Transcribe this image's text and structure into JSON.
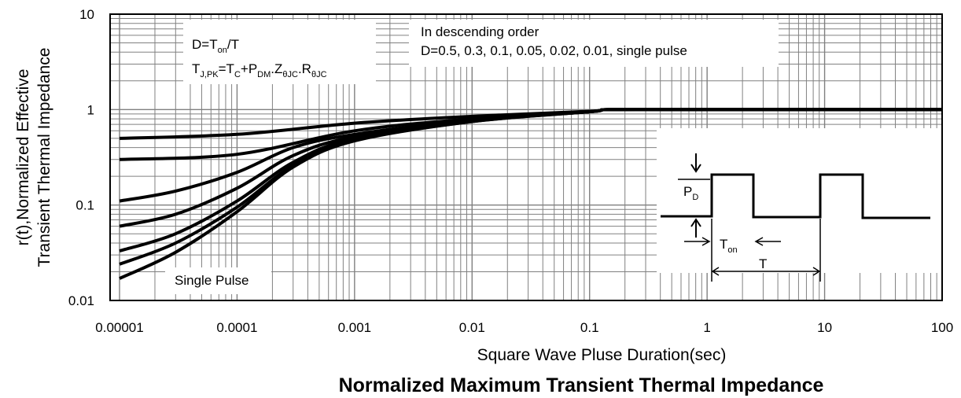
{
  "chart_data": {
    "type": "line",
    "title": "Normalized Maximum Transient Thermal Impedance",
    "xlabel": "Square Wave Pluse Duration(sec)",
    "ylabel_line1": "r(t),Normalized Effective",
    "ylabel_line2": "Transient Thermal Impedance",
    "x_scale": "log",
    "y_scale": "log",
    "xlim": [
      1e-05,
      100
    ],
    "ylim": [
      0.01,
      10
    ],
    "grid": true,
    "x_tick_labels": [
      "0.00001",
      "0.0001",
      "0.001",
      "0.01",
      "0.1",
      "1",
      "10",
      "100"
    ],
    "y_tick_labels": [
      "10",
      "1",
      "0.1",
      "0.01"
    ],
    "series": [
      {
        "x": [
          1e-05,
          0.0001,
          0.001,
          0.01,
          0.1,
          0.15,
          1,
          10,
          100
        ],
        "y": [
          0.5,
          0.55,
          0.72,
          0.85,
          0.96,
          1.0,
          1.0,
          1.0,
          1.0
        ]
      },
      {
        "x": [
          1e-05,
          0.0001,
          0.001,
          0.01,
          0.1,
          0.15,
          1,
          10,
          100
        ],
        "y": [
          0.3,
          0.34,
          0.6,
          0.8,
          0.95,
          1.0,
          1.0,
          1.0,
          1.0
        ]
      },
      {
        "x": [
          1e-05,
          3e-05,
          0.0001,
          0.0003,
          0.001,
          0.01,
          0.1,
          0.15,
          1,
          100
        ],
        "y": [
          0.11,
          0.14,
          0.22,
          0.4,
          0.55,
          0.78,
          0.95,
          1.0,
          1.0,
          1.0
        ]
      },
      {
        "x": [
          1e-05,
          3e-05,
          0.0001,
          0.0003,
          0.001,
          0.01,
          0.1,
          0.15,
          1,
          100
        ],
        "y": [
          0.06,
          0.08,
          0.15,
          0.33,
          0.52,
          0.77,
          0.95,
          1.0,
          1.0,
          1.0
        ]
      },
      {
        "x": [
          1e-05,
          3e-05,
          0.0001,
          0.0003,
          0.001,
          0.01,
          0.1,
          0.15,
          1,
          100
        ],
        "y": [
          0.033,
          0.05,
          0.11,
          0.28,
          0.5,
          0.76,
          0.95,
          1.0,
          1.0,
          1.0
        ]
      },
      {
        "x": [
          1e-05,
          3e-05,
          0.0001,
          0.0003,
          0.001,
          0.01,
          0.1,
          0.15,
          1,
          100
        ],
        "y": [
          0.024,
          0.04,
          0.095,
          0.26,
          0.48,
          0.75,
          0.95,
          1.0,
          1.0,
          1.0
        ]
      },
      {
        "x": [
          1e-05,
          3e-05,
          0.0001,
          0.0003,
          0.001,
          0.01,
          0.1,
          0.15,
          1,
          100
        ],
        "y": [
          0.017,
          0.032,
          0.085,
          0.25,
          0.47,
          0.75,
          0.95,
          1.0,
          1.0,
          1.0
        ]
      }
    ],
    "annotations": {
      "duty_formula_D": "D=",
      "duty_formula_Ton": "T",
      "duty_formula_on": "on",
      "duty_formula_tail": "/T",
      "tj_formula": {
        "T1": "T",
        "J_PK": "J,PK",
        "eq": "=T",
        "C": "C",
        "plusP": "+P",
        "DM": "DM",
        "dotZ": ".Z",
        "thetaJC": "θJC",
        "dotR": ".R",
        "thetaJC2": "θJC"
      },
      "order_line1": "In descending order",
      "order_line2": "D=0.5, 0.3, 0.1, 0.05, 0.02, 0.01, single pulse",
      "single_pulse": "Single Pulse",
      "pd_P": "P",
      "pd_D": "D",
      "ton_T": "T",
      "ton_on": "on",
      "period_T": "T"
    }
  }
}
